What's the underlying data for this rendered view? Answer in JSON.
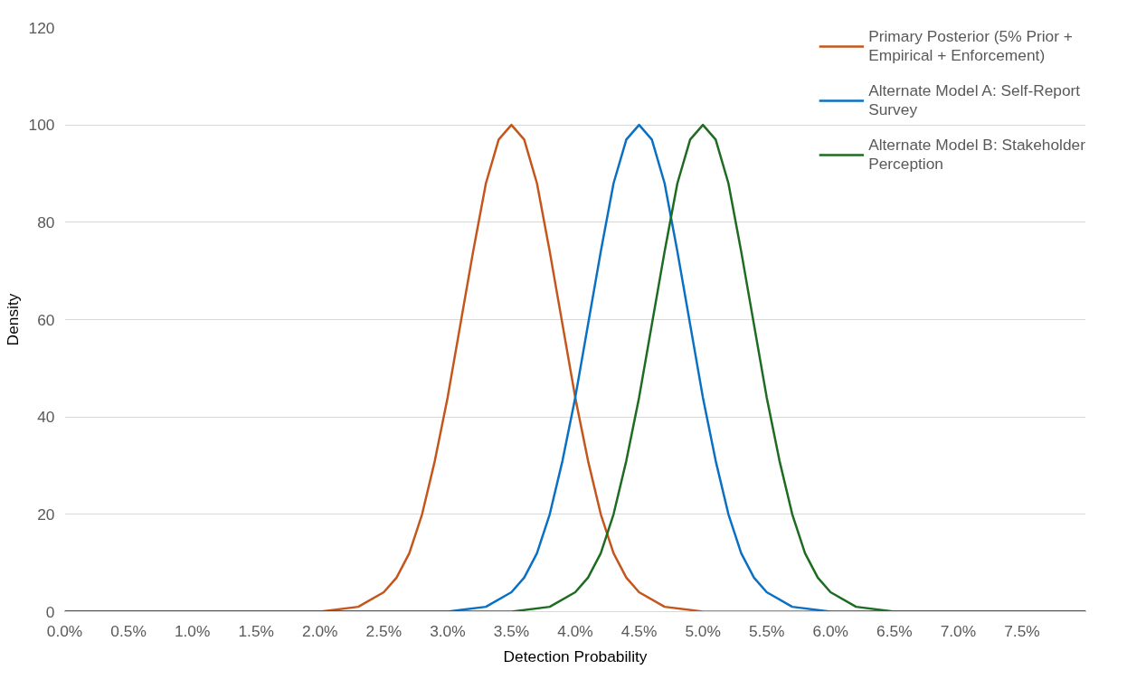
{
  "chart_data": {
    "type": "line",
    "xlabel": "Detection Probability",
    "ylabel": "Density",
    "xlim": [
      0,
      8
    ],
    "ylim": [
      0,
      120
    ],
    "xticks": [
      {
        "value": 0,
        "label": "0.0%"
      },
      {
        "value": 0.5,
        "label": "0.5%"
      },
      {
        "value": 1,
        "label": "1.0%"
      },
      {
        "value": 1.5,
        "label": "1.5%"
      },
      {
        "value": 2,
        "label": "2.0%"
      },
      {
        "value": 2.5,
        "label": "2.5%"
      },
      {
        "value": 3,
        "label": "3.0%"
      },
      {
        "value": 3.5,
        "label": "3.5%"
      },
      {
        "value": 4,
        "label": "4.0%"
      },
      {
        "value": 4.5,
        "label": "4.5%"
      },
      {
        "value": 5,
        "label": "5.0%"
      },
      {
        "value": 5.5,
        "label": "5.5%"
      },
      {
        "value": 6,
        "label": "6.0%"
      },
      {
        "value": 6.5,
        "label": "6.5%"
      },
      {
        "value": 7,
        "label": "7.0%"
      },
      {
        "value": 7.5,
        "label": "7.5%"
      }
    ],
    "yticks": [
      0,
      20,
      40,
      60,
      80,
      100,
      120
    ],
    "grid": "y",
    "legend": "top right",
    "marker": "none",
    "line_style": "solid",
    "series": [
      {
        "name": "Primary Posterior (5% Prior + Empirical + Enforcement)",
        "color": "#c4561c",
        "x": [
          0,
          2.0,
          2.3,
          2.5,
          2.6,
          2.7,
          2.8,
          2.9,
          3.0,
          3.1,
          3.2,
          3.3,
          3.4,
          3.5,
          3.6,
          3.7,
          3.8,
          3.9,
          4.0,
          4.1,
          4.2,
          4.3,
          4.4,
          4.5,
          4.7,
          5.0,
          8
        ],
        "values": [
          0,
          0,
          1,
          4,
          7,
          12,
          20,
          31,
          44,
          59,
          74,
          88,
          97,
          100,
          97,
          88,
          74,
          59,
          44,
          31,
          20,
          12,
          7,
          4,
          1,
          0,
          0
        ]
      },
      {
        "name": "Alternate Model A: Self-Report Survey",
        "color": "#0a70c4",
        "x": [
          0,
          3.0,
          3.3,
          3.5,
          3.6,
          3.7,
          3.8,
          3.9,
          4.0,
          4.1,
          4.2,
          4.3,
          4.4,
          4.5,
          4.6,
          4.7,
          4.8,
          4.9,
          5.0,
          5.1,
          5.2,
          5.3,
          5.4,
          5.5,
          5.7,
          6.0,
          8
        ],
        "values": [
          0,
          0,
          1,
          4,
          7,
          12,
          20,
          31,
          44,
          59,
          74,
          88,
          97,
          100,
          97,
          88,
          74,
          59,
          44,
          31,
          20,
          12,
          7,
          4,
          1,
          0,
          0
        ]
      },
      {
        "name": "Alternate Model B: Stakeholder Perception",
        "color": "#1e6b22",
        "x": [
          0,
          3.5,
          3.8,
          4.0,
          4.1,
          4.2,
          4.3,
          4.4,
          4.5,
          4.6,
          4.7,
          4.8,
          4.9,
          5.0,
          5.1,
          5.2,
          5.3,
          5.4,
          5.5,
          5.6,
          5.7,
          5.8,
          5.9,
          6.0,
          6.2,
          6.5,
          8
        ],
        "values": [
          0,
          0,
          1,
          4,
          7,
          12,
          20,
          31,
          44,
          59,
          74,
          88,
          97,
          100,
          97,
          88,
          74,
          59,
          44,
          31,
          20,
          12,
          7,
          4,
          1,
          0,
          0
        ]
      }
    ]
  }
}
